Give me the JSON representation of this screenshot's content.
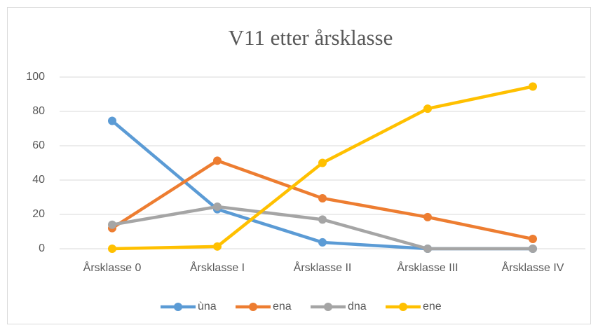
{
  "chart_data": {
    "type": "line",
    "title": "V11 etter årsklasse",
    "categories": [
      "Årsklasse 0",
      "Årsklasse I",
      "Årsklasse II",
      "Årsklasse III",
      "Årsklasse IV"
    ],
    "series": [
      {
        "name": "ùna",
        "color": "#5b9bd5",
        "values": [
          74.5,
          23,
          3.7,
          0,
          0
        ]
      },
      {
        "name": "ena",
        "color": "#ed7d31",
        "values": [
          12,
          51.3,
          29.4,
          18.4,
          5.7
        ]
      },
      {
        "name": "dna",
        "color": "#a5a5a5",
        "values": [
          14,
          24.5,
          17,
          0,
          0
        ]
      },
      {
        "name": "ene",
        "color": "#ffc000",
        "values": [
          0,
          1.3,
          50,
          81.6,
          94.5
        ]
      }
    ],
    "ylim": [
      0,
      100
    ],
    "yticks": [
      0,
      20,
      40,
      60,
      80,
      100
    ],
    "grid": true,
    "legend": "bottom"
  }
}
